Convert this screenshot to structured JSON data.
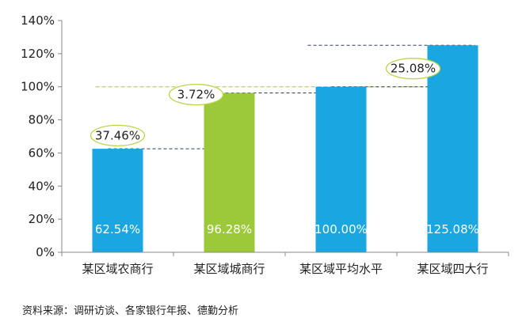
{
  "chart_data": {
    "type": "bar",
    "title": "",
    "xlabel": "",
    "ylabel": "",
    "ylim": [
      0,
      140
    ],
    "y_ticks": [
      "0%",
      "20%",
      "40%",
      "60%",
      "80%",
      "100%",
      "120%",
      "140%"
    ],
    "categories": [
      "某区域农商行",
      "某区域城商行",
      "某区域平均水平",
      "某区域四大行"
    ],
    "values": [
      62.54,
      96.28,
      100.0,
      125.08
    ],
    "data_labels": [
      "62.54%",
      "96.28%",
      "100.00%",
      "125.08%"
    ],
    "bar_colors": [
      "#1aa6e0",
      "#9cc93a",
      "#1aa6e0",
      "#1aa6e0"
    ],
    "gap_annotations": [
      {
        "from": "某区域农商行",
        "to": "某区域城商行",
        "label": "37.46%"
      },
      {
        "from": "某区域城商行",
        "to": "某区域平均水平",
        "label": "3.72%"
      },
      {
        "from": "某区域平均水平",
        "to": "某区域四大行",
        "label": "25.08%"
      }
    ],
    "reference_line": {
      "value": 100,
      "color": "#b9d54a"
    },
    "grid": false,
    "legend": "none"
  },
  "source_text": "资料来源：调研访谈、各家银行年报、德勤分析",
  "colors": {
    "axis": "#888888",
    "tick_text": "#222222",
    "dashed_connector": "#2c3e6b",
    "ellipse_stroke": "#b9d54a",
    "data_label_text": "#ffffff"
  }
}
